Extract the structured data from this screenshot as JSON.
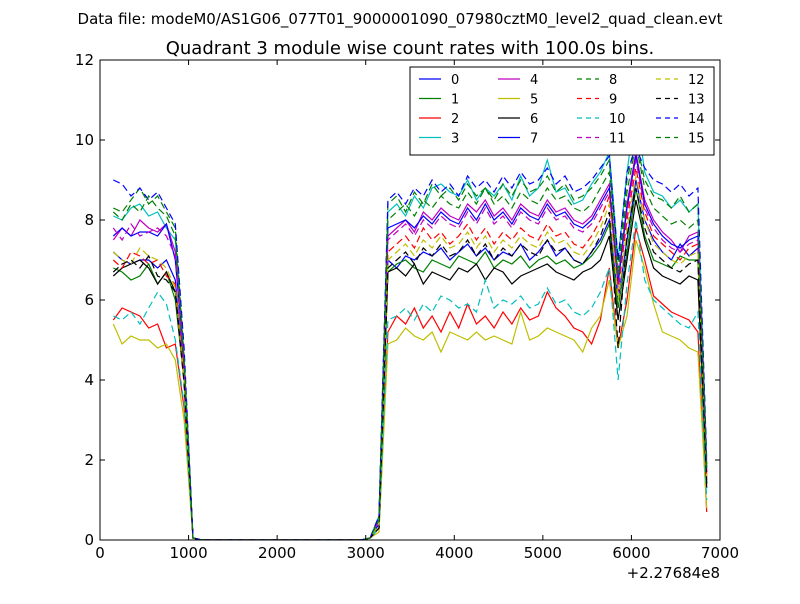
{
  "figure": {
    "suptitle": "Data file: modeM0/AS1G06_077T01_9000001090_07980cztM0_level2_quad_clean.evt",
    "offset_label": "+2.27684e8"
  },
  "chart_data": {
    "type": "line",
    "title": "Quadrant 3 module wise count rates with 100.0s bins.",
    "xlabel": "",
    "ylabel": "",
    "xlim": [
      0,
      7000
    ],
    "ylim": [
      0,
      12
    ],
    "xticks": [
      0,
      1000,
      2000,
      3000,
      4000,
      5000,
      6000,
      7000
    ],
    "yticks": [
      0,
      2,
      4,
      6,
      8,
      10,
      12
    ],
    "grid": false,
    "legend_position": "top-right",
    "legend_columns": 4,
    "x": [
      150,
      250,
      350,
      450,
      550,
      650,
      750,
      850,
      950,
      1050,
      1150,
      1250,
      1350,
      1450,
      1550,
      1650,
      1750,
      1850,
      1950,
      2050,
      2150,
      2250,
      2350,
      2450,
      2550,
      2650,
      2750,
      2850,
      2950,
      3050,
      3150,
      3250,
      3350,
      3450,
      3550,
      3650,
      3750,
      3850,
      3950,
      4050,
      4150,
      4250,
      4350,
      4450,
      4550,
      4650,
      4750,
      4850,
      4950,
      5050,
      5150,
      5250,
      5350,
      5450,
      5550,
      5650,
      5750,
      5850,
      5950,
      6050,
      6150,
      6250,
      6350,
      6450,
      6550,
      6650,
      6750,
      6850
    ],
    "series": [
      {
        "name": "0",
        "color": "#0000ff",
        "dash": "solid",
        "values": [
          7.2,
          7.0,
          6.9,
          7.0,
          7.0,
          6.8,
          7.0,
          6.5,
          4.0,
          0.05,
          0,
          0,
          0,
          0,
          0,
          0,
          0,
          0,
          0,
          0,
          0,
          0,
          0,
          0,
          0,
          0,
          0,
          0,
          0,
          0.05,
          0.4,
          7.0,
          6.8,
          7.1,
          7.0,
          7.2,
          7.1,
          7.3,
          7.0,
          7.2,
          7.4,
          7.1,
          7.3,
          7.0,
          7.2,
          7.1,
          7.4,
          7.0,
          7.2,
          7.5,
          7.1,
          7.3,
          7.0,
          6.9,
          7.2,
          7.5,
          8.0,
          6.0,
          7.5,
          9.0,
          8.0,
          7.5,
          7.2,
          7.0,
          7.4,
          7.1,
          7.3,
          1.5
        ]
      },
      {
        "name": "1",
        "color": "#008000",
        "dash": "solid",
        "values": [
          6.8,
          6.7,
          6.5,
          6.6,
          6.9,
          6.4,
          6.7,
          6.0,
          4.0,
          0.05,
          0,
          0,
          0,
          0,
          0,
          0,
          0,
          0,
          0,
          0,
          0,
          0,
          0,
          0,
          0,
          0,
          0,
          0,
          0,
          0.05,
          0.3,
          6.7,
          6.9,
          7.0,
          6.8,
          6.7,
          7.0,
          6.9,
          6.8,
          7.1,
          7.0,
          6.9,
          7.2,
          6.8,
          7.0,
          6.9,
          7.1,
          6.8,
          7.0,
          7.1,
          6.9,
          7.0,
          6.8,
          6.9,
          7.1,
          7.4,
          7.9,
          5.8,
          7.2,
          8.8,
          7.6,
          7.0,
          6.9,
          6.8,
          7.1,
          7.0,
          7.0,
          1.4
        ]
      },
      {
        "name": "2",
        "color": "#ff0000",
        "dash": "solid",
        "values": [
          5.5,
          5.8,
          5.7,
          5.6,
          5.3,
          5.4,
          4.8,
          4.9,
          3.3,
          0.05,
          0,
          0,
          0,
          0,
          0,
          0,
          0,
          0,
          0,
          0,
          0,
          0,
          0,
          0,
          0,
          0,
          0,
          0,
          0,
          0.05,
          0.3,
          5.2,
          5.6,
          5.4,
          5.8,
          5.3,
          5.6,
          5.2,
          5.7,
          5.3,
          5.9,
          5.4,
          5.6,
          5.3,
          5.7,
          5.4,
          5.8,
          5.5,
          5.6,
          6.2,
          5.8,
          5.6,
          5.3,
          5.2,
          4.9,
          5.5,
          6.8,
          4.8,
          6.0,
          7.8,
          7.0,
          6.1,
          5.9,
          5.7,
          5.6,
          5.5,
          5.2,
          0.7
        ]
      },
      {
        "name": "3",
        "color": "#00bfbf",
        "dash": "solid",
        "values": [
          8.1,
          8.0,
          8.3,
          8.4,
          8.1,
          8.2,
          7.8,
          7.5,
          4.5,
          0.05,
          0,
          0,
          0,
          0,
          0,
          0,
          0,
          0,
          0,
          0,
          0,
          0,
          0,
          0,
          0,
          0,
          0,
          0,
          0,
          0.05,
          0.6,
          8.2,
          8.4,
          8.1,
          8.6,
          8.3,
          8.8,
          8.9,
          8.7,
          8.6,
          9.0,
          8.5,
          8.8,
          8.6,
          8.9,
          8.5,
          9.1,
          8.6,
          8.8,
          9.5,
          8.7,
          8.8,
          8.4,
          8.5,
          8.9,
          9.2,
          9.7,
          7.0,
          9.2,
          10.8,
          9.2,
          8.7,
          8.6,
          8.3,
          8.5,
          8.2,
          8.4,
          2.0
        ]
      },
      {
        "name": "4",
        "color": "#bf00bf",
        "dash": "solid",
        "values": [
          7.5,
          7.8,
          7.6,
          8.0,
          7.8,
          7.7,
          7.9,
          7.2,
          4.3,
          0.05,
          0,
          0,
          0,
          0,
          0,
          0,
          0,
          0,
          0,
          0,
          0,
          0,
          0,
          0,
          0,
          0,
          0,
          0,
          0,
          0.05,
          0.5,
          7.6,
          7.8,
          8.0,
          7.7,
          8.2,
          8.0,
          8.3,
          8.1,
          8.0,
          8.4,
          8.2,
          8.5,
          8.1,
          8.3,
          8.0,
          8.4,
          8.2,
          8.1,
          8.5,
          8.2,
          8.3,
          8.0,
          7.9,
          8.1,
          8.5,
          8.9,
          6.5,
          8.4,
          9.7,
          8.5,
          8.0,
          7.7,
          7.5,
          7.2,
          7.6,
          7.7,
          1.8
        ]
      },
      {
        "name": "5",
        "color": "#bfbf00",
        "dash": "solid",
        "values": [
          5.4,
          4.9,
          5.1,
          5.0,
          5.0,
          4.8,
          4.9,
          4.5,
          3.0,
          0.05,
          0,
          0,
          0,
          0,
          0,
          0,
          0,
          0,
          0,
          0,
          0,
          0,
          0,
          0,
          0,
          0,
          0,
          0,
          0,
          0.05,
          0.2,
          4.9,
          5.0,
          5.3,
          5.1,
          5.0,
          5.2,
          4.7,
          5.2,
          5.1,
          5.0,
          5.2,
          5.0,
          5.1,
          5.0,
          4.9,
          5.7,
          5.0,
          5.1,
          5.3,
          5.2,
          5.1,
          5.0,
          4.7,
          5.3,
          5.6,
          6.5,
          4.8,
          5.6,
          7.5,
          6.8,
          5.9,
          5.2,
          5.1,
          5.0,
          4.8,
          4.7,
          0.8
        ]
      },
      {
        "name": "6",
        "color": "#000000",
        "dash": "solid",
        "values": [
          6.6,
          6.8,
          6.9,
          7.0,
          6.8,
          6.4,
          6.7,
          6.2,
          4.0,
          0.05,
          0,
          0,
          0,
          0,
          0,
          0,
          0,
          0,
          0,
          0,
          0,
          0,
          0,
          0,
          0,
          0,
          0,
          0,
          0,
          0.05,
          0.3,
          6.7,
          6.8,
          6.6,
          6.9,
          6.4,
          6.7,
          6.6,
          6.5,
          6.8,
          6.7,
          6.9,
          6.5,
          6.8,
          6.7,
          6.4,
          6.6,
          6.7,
          6.8,
          6.9,
          6.7,
          6.6,
          6.5,
          6.7,
          6.8,
          7.0,
          7.6,
          5.5,
          7.0,
          8.5,
          7.5,
          6.8,
          6.6,
          6.5,
          6.4,
          6.6,
          6.5,
          1.3
        ]
      },
      {
        "name": "7",
        "color": "#0000ff",
        "dash": "solid",
        "values": [
          7.6,
          7.8,
          7.6,
          7.7,
          7.7,
          7.6,
          7.9,
          7.0,
          4.4,
          0.05,
          0,
          0,
          0,
          0,
          0,
          0,
          0,
          0,
          0,
          0,
          0,
          0,
          0,
          0,
          0,
          0,
          0,
          0,
          0,
          0.05,
          0.5,
          7.8,
          7.9,
          8.0,
          7.8,
          8.1,
          7.9,
          8.2,
          8.0,
          7.9,
          8.3,
          8.0,
          8.4,
          8.0,
          8.2,
          7.9,
          8.3,
          8.1,
          8.0,
          8.4,
          8.1,
          8.2,
          7.9,
          7.8,
          8.0,
          8.4,
          8.8,
          6.4,
          8.3,
          9.6,
          8.4,
          7.9,
          7.6,
          7.4,
          7.3,
          7.5,
          7.6,
          1.7
        ]
      },
      {
        "name": "8",
        "color": "#008000",
        "dash": "dashed",
        "values": [
          8.3,
          8.2,
          8.5,
          8.8,
          8.4,
          8.6,
          8.2,
          7.8,
          4.6,
          0.05,
          0,
          0,
          0,
          0,
          0,
          0,
          0,
          0,
          0,
          0,
          0,
          0,
          0,
          0,
          0,
          0,
          0,
          0,
          0,
          0.05,
          0.6,
          8.4,
          8.6,
          8.2,
          8.7,
          8.4,
          8.9,
          8.6,
          8.8,
          8.5,
          8.9,
          8.6,
          8.8,
          8.5,
          8.9,
          8.6,
          9.0,
          8.7,
          8.8,
          9.1,
          8.7,
          8.9,
          8.5,
          8.6,
          8.8,
          9.1,
          9.5,
          6.8,
          9.0,
          10.0,
          9.0,
          8.6,
          8.5,
          8.3,
          8.6,
          8.2,
          8.4,
          1.9
        ]
      },
      {
        "name": "9",
        "color": "#ff0000",
        "dash": "dashed",
        "values": [
          7.0,
          6.8,
          7.2,
          7.1,
          6.9,
          7.0,
          6.6,
          6.4,
          4.1,
          0.05,
          0,
          0,
          0,
          0,
          0,
          0,
          0,
          0,
          0,
          0,
          0,
          0,
          0,
          0,
          0,
          0,
          0,
          0,
          0,
          0.05,
          0.4,
          7.2,
          7.4,
          7.6,
          7.3,
          7.8,
          7.5,
          7.7,
          7.4,
          7.6,
          7.9,
          7.5,
          7.8,
          7.4,
          7.7,
          7.5,
          7.8,
          7.6,
          7.5,
          7.9,
          7.6,
          7.7,
          7.4,
          7.3,
          7.6,
          8.0,
          8.6,
          6.2,
          8.0,
          9.3,
          8.2,
          7.6,
          7.4,
          7.2,
          7.0,
          7.3,
          7.4,
          1.6
        ]
      },
      {
        "name": "10",
        "color": "#00bfbf",
        "dash": "dashed",
        "values": [
          5.6,
          5.5,
          5.7,
          5.4,
          5.8,
          6.2,
          5.9,
          5.0,
          3.4,
          0.05,
          0,
          0,
          0,
          0,
          0,
          0,
          0,
          0,
          0,
          0,
          0,
          0,
          0,
          0,
          0,
          0,
          0,
          0,
          0,
          0.05,
          0.3,
          5.5,
          5.6,
          5.8,
          5.5,
          5.9,
          5.7,
          6.1,
          6.0,
          5.8,
          5.9,
          5.7,
          6.5,
          5.8,
          6.0,
          5.9,
          6.1,
          5.8,
          5.9,
          6.3,
          5.9,
          6.0,
          5.7,
          5.6,
          5.8,
          6.2,
          6.8,
          4.0,
          6.4,
          8.0,
          6.5,
          6.0,
          5.8,
          5.6,
          5.4,
          5.3,
          5.7,
          1.0
        ]
      },
      {
        "name": "11",
        "color": "#bf00bf",
        "dash": "dashed",
        "values": [
          7.8,
          7.5,
          7.9,
          7.6,
          7.7,
          7.8,
          7.6,
          7.1,
          4.3,
          0.05,
          0,
          0,
          0,
          0,
          0,
          0,
          0,
          0,
          0,
          0,
          0,
          0,
          0,
          0,
          0,
          0,
          0,
          0,
          0,
          0.05,
          0.5,
          7.5,
          7.7,
          7.9,
          7.6,
          8.0,
          7.8,
          8.1,
          7.9,
          7.8,
          8.2,
          7.9,
          8.3,
          7.9,
          8.1,
          7.8,
          8.2,
          8.0,
          7.9,
          8.3,
          8.0,
          8.1,
          7.8,
          7.7,
          7.9,
          8.3,
          8.7,
          6.3,
          8.2,
          9.5,
          8.3,
          7.8,
          7.5,
          7.3,
          7.2,
          7.4,
          7.5,
          1.7
        ]
      },
      {
        "name": "12",
        "color": "#bfbf00",
        "dash": "dashed",
        "values": [
          7.2,
          7.0,
          6.9,
          7.3,
          7.1,
          7.0,
          6.8,
          6.3,
          4.0,
          0.05,
          0,
          0,
          0,
          0,
          0,
          0,
          0,
          0,
          0,
          0,
          0,
          0,
          0,
          0,
          0,
          0,
          0,
          0,
          0,
          0.05,
          0.4,
          7.0,
          7.2,
          7.4,
          7.1,
          7.5,
          7.3,
          7.6,
          7.3,
          7.4,
          7.7,
          7.3,
          7.6,
          7.2,
          7.5,
          7.3,
          7.6,
          7.4,
          7.3,
          7.7,
          7.4,
          7.5,
          7.2,
          7.1,
          7.4,
          7.8,
          8.4,
          6.0,
          7.8,
          9.1,
          8.0,
          7.4,
          7.2,
          7.0,
          6.9,
          7.1,
          7.2,
          1.5
        ]
      },
      {
        "name": "13",
        "color": "#000000",
        "dash": "dashed",
        "values": [
          6.7,
          6.9,
          7.0,
          6.8,
          7.1,
          6.6,
          6.5,
          6.2,
          3.9,
          0.05,
          0,
          0,
          0,
          0,
          0,
          0,
          0,
          0,
          0,
          0,
          0,
          0,
          0,
          0,
          0,
          0,
          0,
          0,
          0,
          0.05,
          0.3,
          6.8,
          7.0,
          7.2,
          6.9,
          7.3,
          7.1,
          7.4,
          7.1,
          7.2,
          7.5,
          7.1,
          7.4,
          7.0,
          7.3,
          7.1,
          7.4,
          7.2,
          7.1,
          7.5,
          7.2,
          7.3,
          7.0,
          6.9,
          7.2,
          7.6,
          8.2,
          4.8,
          7.6,
          8.8,
          7.8,
          7.2,
          7.0,
          6.8,
          6.7,
          6.9,
          7.0,
          1.4
        ]
      },
      {
        "name": "14",
        "color": "#0000ff",
        "dash": "dashed",
        "values": [
          9.0,
          8.9,
          8.6,
          8.8,
          8.5,
          8.7,
          8.3,
          7.9,
          4.8,
          0.05,
          0,
          0,
          0,
          0,
          0,
          0,
          0,
          0,
          0,
          0,
          0,
          0,
          0,
          0,
          0,
          0,
          0,
          0,
          0,
          0.05,
          0.6,
          8.5,
          8.7,
          8.4,
          8.8,
          8.6,
          9.0,
          8.7,
          8.9,
          8.6,
          9.1,
          8.8,
          9.0,
          8.7,
          9.1,
          8.8,
          9.2,
          8.9,
          9.0,
          9.3,
          8.9,
          9.1,
          8.7,
          8.8,
          9.0,
          9.3,
          9.6,
          7.0,
          9.2,
          9.8,
          9.3,
          9.0,
          8.9,
          8.7,
          8.9,
          8.6,
          8.8,
          2.0
        ]
      },
      {
        "name": "15",
        "color": "#008000",
        "dash": "dashed",
        "values": [
          8.2,
          8.0,
          8.4,
          8.2,
          8.6,
          8.3,
          8.1,
          7.6,
          4.5,
          0.05,
          0,
          0,
          0,
          0,
          0,
          0,
          0,
          0,
          0,
          0,
          0,
          0,
          0,
          0,
          0,
          0,
          0,
          0,
          0,
          0.05,
          0.5,
          8.0,
          8.2,
          8.4,
          8.1,
          8.5,
          8.3,
          8.6,
          8.4,
          8.3,
          8.7,
          8.4,
          8.8,
          8.4,
          8.6,
          8.3,
          8.7,
          8.5,
          8.4,
          8.8,
          8.5,
          8.6,
          8.3,
          8.2,
          8.4,
          8.8,
          9.2,
          6.6,
          8.7,
          9.9,
          8.8,
          8.3,
          8.1,
          7.9,
          8.0,
          7.8,
          8.0,
          1.8
        ]
      }
    ]
  }
}
